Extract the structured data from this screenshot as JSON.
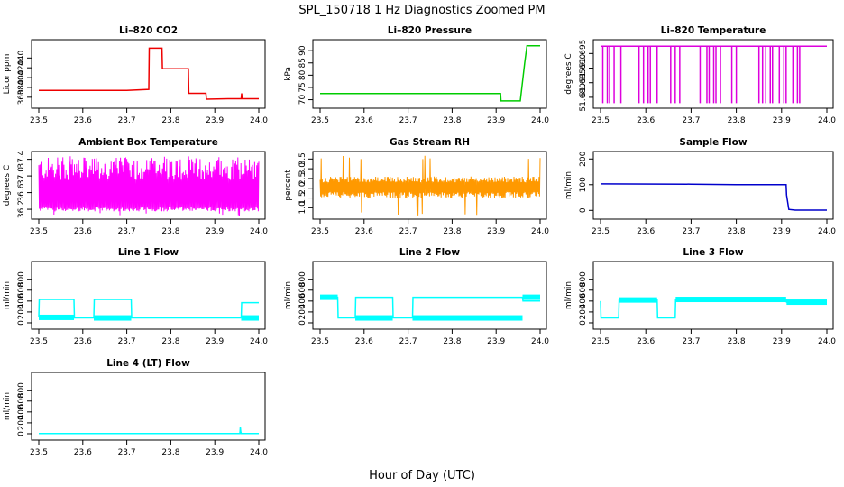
{
  "figure": {
    "title": "SPL_150718  1 Hz Diagnostics Zoomed PM",
    "xlabel": "Hour of Day (UTC)"
  },
  "chart_data": [
    {
      "type": "line",
      "title": "Li–820 CO2",
      "ylabel": "Licor ppm",
      "color": "#ee0000",
      "xlim": [
        23.5,
        24.0
      ],
      "ylim": [
        345,
        470
      ],
      "xticks": [
        "23.5",
        "23.6",
        "23.7",
        "23.8",
        "23.9",
        "24.0"
      ],
      "yticks": [
        "360",
        "380",
        "400",
        "420",
        "440"
      ],
      "x": [
        23.5,
        23.6,
        23.7,
        23.75,
        23.751,
        23.78,
        23.781,
        23.84,
        23.841,
        23.88,
        23.881,
        23.93,
        23.96,
        23.961,
        23.962,
        24.0
      ],
      "y": [
        374,
        374,
        374,
        376,
        460,
        460,
        418,
        418,
        368,
        368,
        356,
        357,
        357,
        368,
        357,
        357
      ]
    },
    {
      "type": "line",
      "title": "Li–820 Pressure",
      "ylabel": "kPa",
      "color": "#00cc00",
      "xlim": [
        23.5,
        24.0
      ],
      "ylim": [
        68,
        93
      ],
      "xticks": [
        "23.5",
        "23.6",
        "23.7",
        "23.8",
        "23.9",
        "24.0"
      ],
      "yticks": [
        "70",
        "75",
        "80",
        "85",
        "90"
      ],
      "x": [
        23.5,
        23.6,
        23.7,
        23.8,
        23.91,
        23.911,
        23.955,
        23.965,
        23.97,
        24.0
      ],
      "y": [
        72.5,
        72.5,
        72.5,
        72.5,
        72.5,
        69.5,
        69.5,
        85,
        92,
        92
      ]
    },
    {
      "type": "line",
      "title": "Li–820 Temperature",
      "ylabel": "degrees C",
      "color": "#dd00dd",
      "xlim": [
        23.5,
        24.0
      ],
      "ylim": [
        51.6775,
        51.6985
      ],
      "xticks": [
        "23.5",
        "23.6",
        "23.7",
        "23.8",
        "23.9",
        "24.0"
      ],
      "yticks": [
        "51.680",
        "51.685",
        "51.690",
        "51.695"
      ],
      "baseline": 51.6975,
      "dips": [
        23.505,
        23.515,
        23.52,
        23.53,
        23.545,
        23.585,
        23.595,
        23.605,
        23.61,
        23.625,
        23.655,
        23.665,
        23.675,
        23.72,
        23.735,
        23.74,
        23.75,
        23.755,
        23.765,
        23.79,
        23.8,
        23.85,
        23.858,
        23.865,
        23.875,
        23.88,
        23.895,
        23.905,
        23.91,
        23.925,
        23.935,
        23.94
      ],
      "dip_value": 51.678
    },
    {
      "type": "line",
      "title": "Ambient Box Temperature",
      "ylabel": "degrees C",
      "color": "#ff00ff",
      "xlim": [
        23.5,
        24.0
      ],
      "ylim": [
        36.05,
        37.5
      ],
      "xticks": [
        "23.5",
        "23.6",
        "23.7",
        "23.8",
        "23.9",
        "24.0"
      ],
      "yticks": [
        "36.2",
        "36.6",
        "37.0",
        "37.4"
      ],
      "band_low": [
        36.15,
        36.25
      ],
      "band_high": [
        36.9,
        37.45
      ],
      "noise": true
    },
    {
      "type": "line",
      "title": "Gas Stream RH",
      "ylabel": "percent",
      "color": "#ff9900",
      "xlim": [
        23.5,
        24.0
      ],
      "ylim": [
        0.6,
        3.7
      ],
      "xticks": [
        "23.5",
        "23.6",
        "23.7",
        "23.8",
        "23.9",
        "24.0"
      ],
      "yticks": [
        "1.0",
        "1.5",
        "2.0",
        "2.5",
        "3.0",
        "3.5"
      ],
      "band_low": [
        1.5,
        1.8
      ],
      "band_high": [
        2.3,
        2.6
      ],
      "noise": true
    },
    {
      "type": "line",
      "title": "Sample Flow",
      "ylabel": "ml/min",
      "color": "#0000cc",
      "xlim": [
        23.5,
        24.0
      ],
      "ylim": [
        -20,
        215
      ],
      "xticks": [
        "23.5",
        "23.6",
        "23.7",
        "23.8",
        "23.9",
        "24.0"
      ],
      "yticks": [
        "0",
        "100",
        "200"
      ],
      "x": [
        23.5,
        23.7,
        23.8,
        23.91,
        23.911,
        23.916,
        23.93,
        24.0
      ],
      "y": [
        103,
        102,
        100,
        100,
        60,
        4,
        1,
        1
      ]
    },
    {
      "type": "line",
      "title": "Line 1 Flow",
      "ylabel": "ml/min",
      "color": "#00ffff",
      "xlim": [
        23.5,
        24.0
      ],
      "ylim": [
        -50,
        1060
      ],
      "xticks": [
        "23.5",
        "23.6",
        "23.7",
        "23.8",
        "23.9",
        "24.0"
      ],
      "yticks": [
        "0",
        "200",
        "400",
        "600",
        "800"
      ],
      "x": [
        23.5,
        23.501,
        23.58,
        23.581,
        23.625,
        23.626,
        23.71,
        23.711,
        23.96,
        23.961,
        24.0
      ],
      "y": [
        100,
        430,
        430,
        90,
        90,
        430,
        430,
        90,
        90,
        370,
        370
      ],
      "thick": [
        [
          23.5,
          23.58
        ],
        [
          23.625,
          23.71
        ],
        [
          23.96,
          24.0
        ]
      ]
    },
    {
      "type": "line",
      "title": "Line 2 Flow",
      "ylabel": "ml/min",
      "color": "#00ffff",
      "xlim": [
        23.5,
        24.0
      ],
      "ylim": [
        -50,
        1060
      ],
      "xticks": [
        "23.5",
        "23.6",
        "23.7",
        "23.8",
        "23.9",
        "24.0"
      ],
      "yticks": [
        "0",
        "200",
        "400",
        "600",
        "800"
      ],
      "x": [
        23.5,
        23.54,
        23.541,
        23.58,
        23.581,
        23.665,
        23.666,
        23.71,
        23.711,
        23.96,
        23.961,
        24.0
      ],
      "y": [
        470,
        470,
        90,
        90,
        470,
        470,
        90,
        90,
        470,
        470,
        400,
        400
      ],
      "thick": [
        [
          23.5,
          23.54
        ],
        [
          23.58,
          23.665
        ],
        [
          23.71,
          23.96
        ],
        [
          23.96,
          24.0
        ]
      ]
    },
    {
      "type": "line",
      "title": "Line 3 Flow",
      "ylabel": "ml/min",
      "color": "#00ffff",
      "xlim": [
        23.5,
        24.0
      ],
      "ylim": [
        -50,
        1060
      ],
      "xticks": [
        "23.5",
        "23.6",
        "23.7",
        "23.8",
        "23.9",
        "24.0"
      ],
      "yticks": [
        "0",
        "200",
        "400",
        "600",
        "800"
      ],
      "x": [
        23.5,
        23.501,
        23.54,
        23.541,
        23.625,
        23.626,
        23.665,
        23.666,
        23.91,
        23.911,
        24.0
      ],
      "y": [
        400,
        90,
        90,
        420,
        420,
        90,
        90,
        430,
        420,
        380,
        370
      ],
      "thick": [
        [
          23.541,
          23.625
        ],
        [
          23.666,
          23.91
        ],
        [
          23.911,
          24.0
        ]
      ]
    },
    {
      "type": "line",
      "title": "Line 4 (LT) Flow",
      "ylabel": "ml/min",
      "color": "#00ffff",
      "xlim": [
        23.5,
        24.0
      ],
      "ylim": [
        -50,
        1060
      ],
      "xticks": [
        "23.5",
        "23.6",
        "23.7",
        "23.8",
        "23.9",
        "24.0"
      ],
      "yticks": [
        "0",
        "200",
        "400",
        "600",
        "800"
      ],
      "x": [
        23.5,
        23.957,
        23.958,
        23.959,
        23.96,
        24.0
      ],
      "y": [
        5,
        5,
        120,
        40,
        5,
        5
      ]
    }
  ]
}
